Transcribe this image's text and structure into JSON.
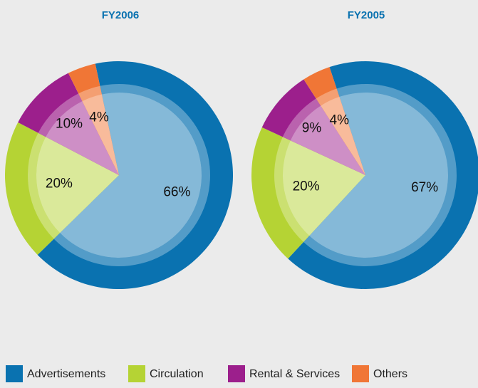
{
  "chart_data": [
    {
      "type": "pie",
      "title": "FY2006",
      "categories": [
        "Advertisements",
        "Circulation",
        "Rental & Services",
        "Others"
      ],
      "values": [
        66,
        20,
        10,
        4
      ],
      "value_labels": [
        "66%",
        "20%",
        "10%",
        "4%"
      ],
      "colors": [
        "#0a72b0",
        "#b5d334",
        "#9c1f8c",
        "#f07636"
      ]
    },
    {
      "type": "pie",
      "title": "FY2005",
      "categories": [
        "Advertisements",
        "Circulation",
        "Rental & Services",
        "Others"
      ],
      "values": [
        67,
        20,
        9,
        4
      ],
      "value_labels": [
        "67%",
        "20%",
        "9%",
        "4%"
      ],
      "colors": [
        "#0a72b0",
        "#b5d334",
        "#9c1f8c",
        "#f07636"
      ]
    }
  ]
}
